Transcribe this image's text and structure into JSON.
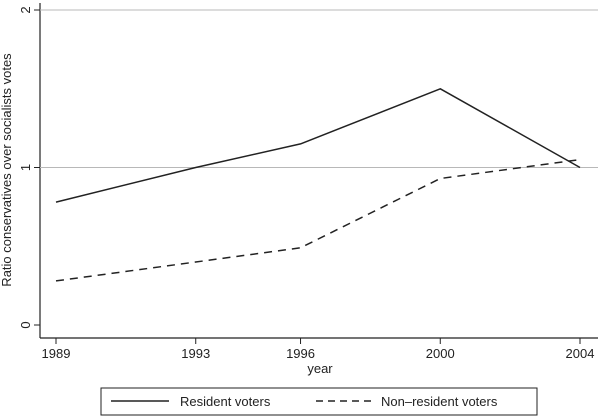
{
  "chart_data": {
    "type": "line",
    "title": "",
    "xlabel": "year",
    "ylabel": "Ratio conservatives over socialists votes",
    "x": [
      1989,
      1993,
      1996,
      2000,
      2004
    ],
    "x_tick_labels": [
      "1989",
      "1993",
      "1996",
      "2000",
      "2004"
    ],
    "y_tick_labels": [
      "0",
      "1",
      "2"
    ],
    "ylim": [
      0,
      2
    ],
    "grid": true,
    "legend_position": "bottom",
    "series": [
      {
        "name": "Resident voters",
        "style": "solid",
        "color": "#222222",
        "values": [
          0.78,
          1.0,
          1.15,
          1.5,
          1.0
        ]
      },
      {
        "name": "Non–resident voters",
        "style": "dashed",
        "color": "#222222",
        "values": [
          0.28,
          0.4,
          0.49,
          0.93,
          1.05
        ]
      }
    ]
  }
}
